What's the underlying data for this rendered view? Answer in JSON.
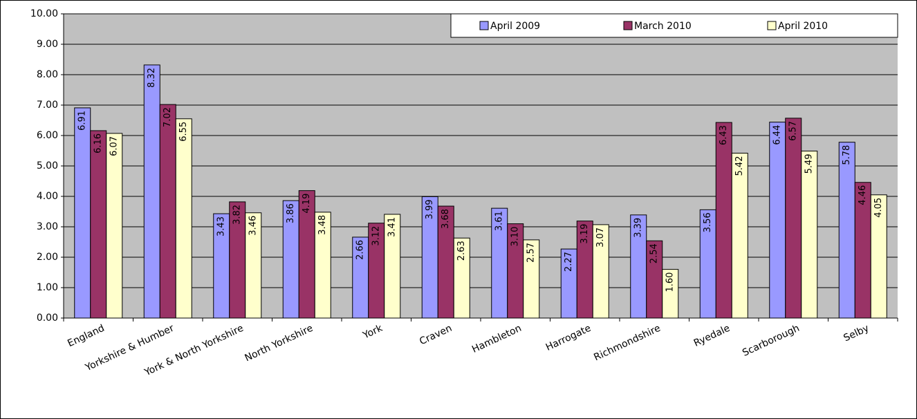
{
  "chart_data": {
    "type": "bar",
    "categories": [
      "England",
      "Yorkshire & Humber",
      "York & North Yorkshire",
      "North Yorkshire",
      "York",
      "Craven",
      "Hambleton",
      "Harrogate",
      "Richmondshire",
      "Ryedale",
      "Scarborough",
      "Selby"
    ],
    "series": [
      {
        "name": "April 2009",
        "color": "#9999ff",
        "label_color": "#ffffff",
        "values": [
          6.91,
          8.32,
          3.43,
          3.86,
          2.66,
          3.99,
          3.61,
          2.27,
          3.39,
          3.56,
          6.44,
          5.78
        ],
        "value_labels": [
          "6.91",
          "8.32",
          "3.43",
          "3.86",
          "2.66",
          "3.99",
          "3.61",
          "2.27",
          "3.39",
          "3.56",
          "6.44",
          "5.78"
        ]
      },
      {
        "name": "March 2010",
        "color": "#993366",
        "label_color": "#ffffff",
        "values": [
          6.16,
          7.02,
          3.82,
          4.19,
          3.12,
          3.68,
          3.1,
          3.19,
          2.54,
          6.43,
          6.57,
          4.46
        ],
        "value_labels": [
          "6.16",
          "7.02",
          "3.82",
          "4.19",
          "3.12",
          "3.68",
          "3.10",
          "3.19",
          "2.54",
          "6.43",
          "6.57",
          "4.46"
        ]
      },
      {
        "name": "April 2010",
        "color": "#ffffcc",
        "label_color": "#000000",
        "values": [
          6.07,
          6.55,
          3.46,
          3.48,
          3.41,
          2.63,
          2.57,
          3.07,
          1.6,
          5.42,
          5.49,
          4.05
        ],
        "value_labels": [
          "6.07",
          "6.55",
          "3.46",
          "3.48",
          "3.41",
          "2.63",
          "2.57",
          "3.07",
          "1.60",
          "5.42",
          "5.49",
          "4.05"
        ]
      }
    ],
    "ylim": [
      0,
      10
    ],
    "yticks": [
      {
        "value": 0,
        "label": "0.00"
      },
      {
        "value": 1,
        "label": "1.00"
      },
      {
        "value": 2,
        "label": "2.00"
      },
      {
        "value": 3,
        "label": "3.00"
      },
      {
        "value": 4,
        "label": "4.00"
      },
      {
        "value": 5,
        "label": "5.00"
      },
      {
        "value": 6,
        "label": "6.00"
      },
      {
        "value": 7,
        "label": "7.00"
      },
      {
        "value": 8,
        "label": "8.00"
      },
      {
        "value": 9,
        "label": "9.00"
      },
      {
        "value": 10,
        "label": "10.00"
      }
    ],
    "grid": true,
    "plot_background": "#c0c0c0",
    "legend": "top-right"
  }
}
